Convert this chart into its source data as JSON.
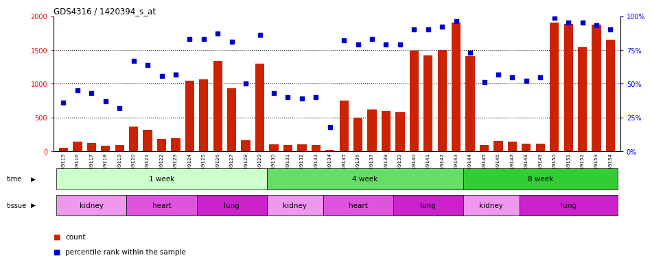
{
  "title": "GDS4316 / 1420394_s_at",
  "samples": [
    "GSM949115",
    "GSM949116",
    "GSM949117",
    "GSM949118",
    "GSM949119",
    "GSM949120",
    "GSM949121",
    "GSM949122",
    "GSM949123",
    "GSM949124",
    "GSM949125",
    "GSM949126",
    "GSM949127",
    "GSM949128",
    "GSM949129",
    "GSM949130",
    "GSM949131",
    "GSM949132",
    "GSM949133",
    "GSM949134",
    "GSM949135",
    "GSM949136",
    "GSM949137",
    "GSM949138",
    "GSM949139",
    "GSM949140",
    "GSM949141",
    "GSM949142",
    "GSM949143",
    "GSM949144",
    "GSM949145",
    "GSM949146",
    "GSM949147",
    "GSM949148",
    "GSM949149",
    "GSM949150",
    "GSM949151",
    "GSM949152",
    "GSM949153",
    "GSM949154"
  ],
  "counts": [
    50,
    140,
    120,
    80,
    90,
    370,
    320,
    185,
    200,
    1040,
    1070,
    1340,
    930,
    160,
    1300,
    100,
    95,
    100,
    95,
    25,
    750,
    500,
    620,
    600,
    580,
    1490,
    1420,
    1500,
    1900,
    1410,
    90,
    150,
    140,
    110,
    110,
    1900,
    1880,
    1540,
    1870,
    1650
  ],
  "percentiles": [
    36,
    45,
    43,
    37,
    32,
    67,
    64,
    56,
    57,
    83,
    83,
    87,
    81,
    50,
    86,
    43,
    40,
    39,
    40,
    18,
    82,
    79,
    83,
    79,
    79,
    90,
    90,
    92,
    96,
    73,
    51,
    57,
    55,
    52,
    55,
    99,
    95,
    95,
    93,
    90
  ],
  "time_groups": [
    {
      "label": "1 week",
      "start": 0,
      "end": 15,
      "color": "#ccffcc"
    },
    {
      "label": "4 week",
      "start": 15,
      "end": 29,
      "color": "#66dd66"
    },
    {
      "label": "8 week",
      "start": 29,
      "end": 40,
      "color": "#33cc33"
    }
  ],
  "tissue_groups": [
    {
      "label": "kidney",
      "start": 0,
      "end": 5,
      "color": "#ee99ee"
    },
    {
      "label": "heart",
      "start": 5,
      "end": 10,
      "color": "#dd55dd"
    },
    {
      "label": "lung",
      "start": 10,
      "end": 15,
      "color": "#cc22cc"
    },
    {
      "label": "kidney",
      "start": 15,
      "end": 19,
      "color": "#ee99ee"
    },
    {
      "label": "heart",
      "start": 19,
      "end": 24,
      "color": "#dd55dd"
    },
    {
      "label": "lung",
      "start": 24,
      "end": 29,
      "color": "#cc22cc"
    },
    {
      "label": "kidney",
      "start": 29,
      "end": 33,
      "color": "#ee99ee"
    },
    {
      "label": "lung",
      "start": 33,
      "end": 40,
      "color": "#cc22cc"
    }
  ],
  "bar_color": "#cc2200",
  "dot_color": "#0000cc",
  "ylim_left": [
    0,
    2000
  ],
  "ylim_right": [
    0,
    100
  ],
  "yticks_left": [
    0,
    500,
    1000,
    1500,
    2000
  ],
  "yticks_right": [
    0,
    25,
    50,
    75,
    100
  ],
  "bg_color": "#ffffff",
  "plot_bg": "#ffffff"
}
